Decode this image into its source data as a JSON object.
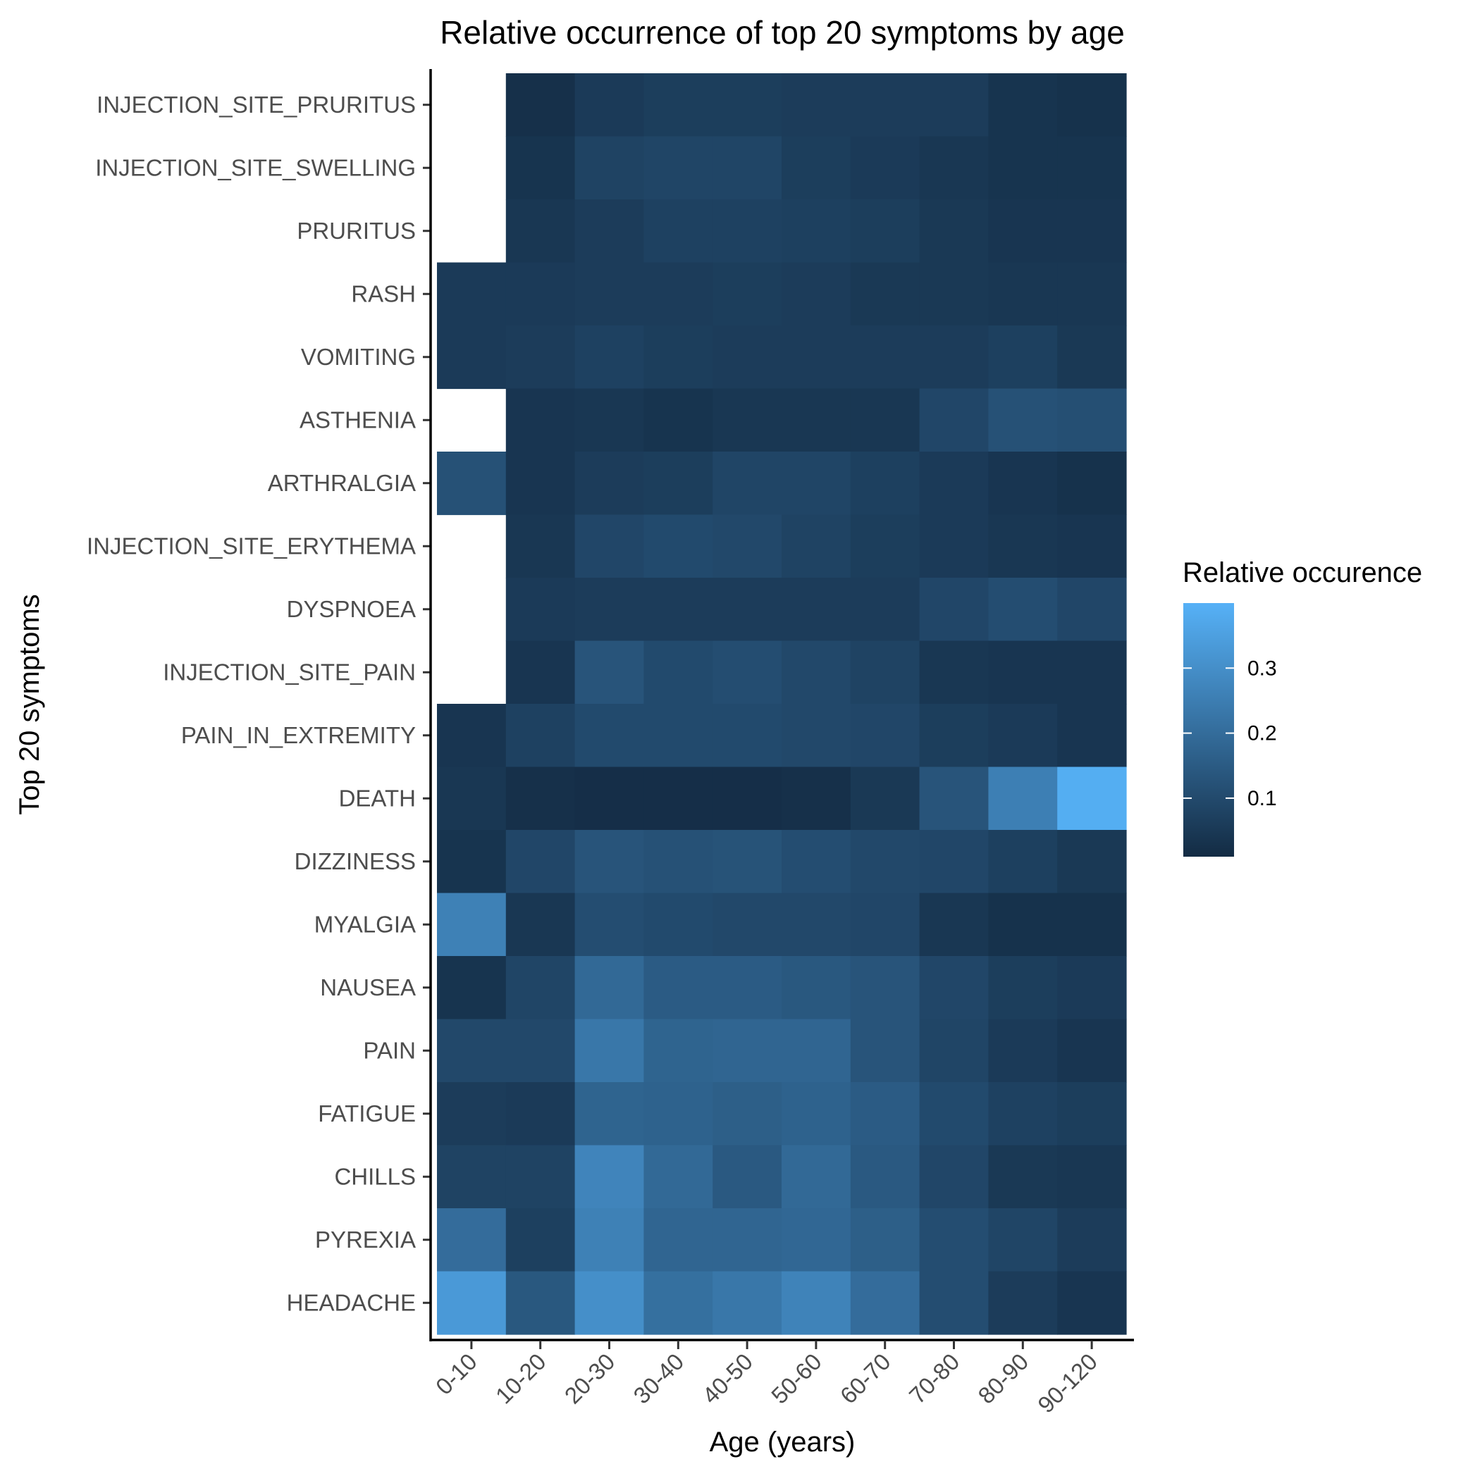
{
  "chart_data": {
    "type": "heatmap",
    "title": "Relative occurrence of top 20 symptoms by age",
    "xlabel": "Age (years)",
    "ylabel": "Top 20 symptoms",
    "x_categories": [
      "0-10",
      "10-20",
      "20-30",
      "30-40",
      "40-50",
      "50-60",
      "60-70",
      "70-80",
      "80-90",
      "90-120"
    ],
    "y_categories": [
      "INJECTION_SITE_PRURITUS",
      "INJECTION_SITE_SWELLING",
      "PRURITUS",
      "RASH",
      "VOMITING",
      "ASTHENIA",
      "ARTHRALGIA",
      "INJECTION_SITE_ERYTHEMA",
      "DYSPNOEA",
      "INJECTION_SITE_PAIN",
      "PAIN_IN_EXTREMITY",
      "DEATH",
      "DIZZINESS",
      "MYALGIA",
      "NAUSEA",
      "PAIN",
      "FATIGUE",
      "CHILLS",
      "PYREXIA",
      "HEADACHE"
    ],
    "values": [
      [
        null,
        0.025,
        0.055,
        0.065,
        0.065,
        0.06,
        0.06,
        0.06,
        0.035,
        0.03
      ],
      [
        null,
        0.035,
        0.08,
        0.085,
        0.085,
        0.065,
        0.055,
        0.045,
        0.035,
        0.035
      ],
      [
        null,
        0.045,
        0.06,
        0.075,
        0.075,
        0.07,
        0.065,
        0.05,
        0.04,
        0.04
      ],
      [
        0.055,
        0.055,
        0.06,
        0.06,
        0.065,
        0.06,
        0.05,
        0.05,
        0.045,
        0.045
      ],
      [
        0.055,
        0.06,
        0.075,
        0.065,
        0.06,
        0.06,
        0.06,
        0.06,
        0.07,
        0.05
      ],
      [
        null,
        0.04,
        0.045,
        0.035,
        0.045,
        0.045,
        0.045,
        0.09,
        0.12,
        0.115
      ],
      [
        0.12,
        0.04,
        0.06,
        0.065,
        0.085,
        0.085,
        0.07,
        0.055,
        0.04,
        0.03
      ],
      [
        null,
        0.045,
        0.09,
        0.1,
        0.095,
        0.08,
        0.065,
        0.055,
        0.045,
        0.04
      ],
      [
        null,
        0.055,
        0.06,
        0.06,
        0.06,
        0.06,
        0.06,
        0.09,
        0.11,
        0.09
      ],
      [
        null,
        0.04,
        0.13,
        0.1,
        0.11,
        0.095,
        0.08,
        0.045,
        0.04,
        0.04
      ],
      [
        0.04,
        0.075,
        0.1,
        0.1,
        0.1,
        0.095,
        0.09,
        0.065,
        0.055,
        0.04
      ],
      [
        0.045,
        0.025,
        0.02,
        0.02,
        0.02,
        0.025,
        0.05,
        0.13,
        0.255,
        0.39
      ],
      [
        0.035,
        0.09,
        0.13,
        0.12,
        0.125,
        0.11,
        0.095,
        0.09,
        0.07,
        0.05
      ],
      [
        0.26,
        0.045,
        0.11,
        0.1,
        0.095,
        0.095,
        0.09,
        0.045,
        0.03,
        0.03
      ],
      [
        0.035,
        0.085,
        0.19,
        0.15,
        0.15,
        0.14,
        0.13,
        0.09,
        0.065,
        0.055
      ],
      [
        0.095,
        0.095,
        0.23,
        0.175,
        0.18,
        0.18,
        0.13,
        0.085,
        0.055,
        0.04
      ],
      [
        0.06,
        0.055,
        0.175,
        0.17,
        0.16,
        0.17,
        0.15,
        0.1,
        0.075,
        0.065
      ],
      [
        0.08,
        0.08,
        0.27,
        0.19,
        0.145,
        0.19,
        0.145,
        0.09,
        0.05,
        0.045
      ],
      [
        0.2,
        0.07,
        0.26,
        0.18,
        0.18,
        0.185,
        0.16,
        0.11,
        0.085,
        0.06
      ],
      [
        0.33,
        0.14,
        0.3,
        0.21,
        0.23,
        0.265,
        0.2,
        0.11,
        0.06,
        0.04
      ]
    ],
    "missing_note": "blank cells (no data) shown in white",
    "color_scale": {
      "low": "#132b43",
      "high": "#56b1f7",
      "min": 0.01,
      "max": 0.4
    },
    "legend": {
      "title": "Relative occurence",
      "ticks": [
        0.1,
        0.2,
        0.3
      ],
      "tick_labels": [
        "0.1",
        "0.2",
        "0.3"
      ],
      "placement": "right"
    },
    "grid": false
  }
}
